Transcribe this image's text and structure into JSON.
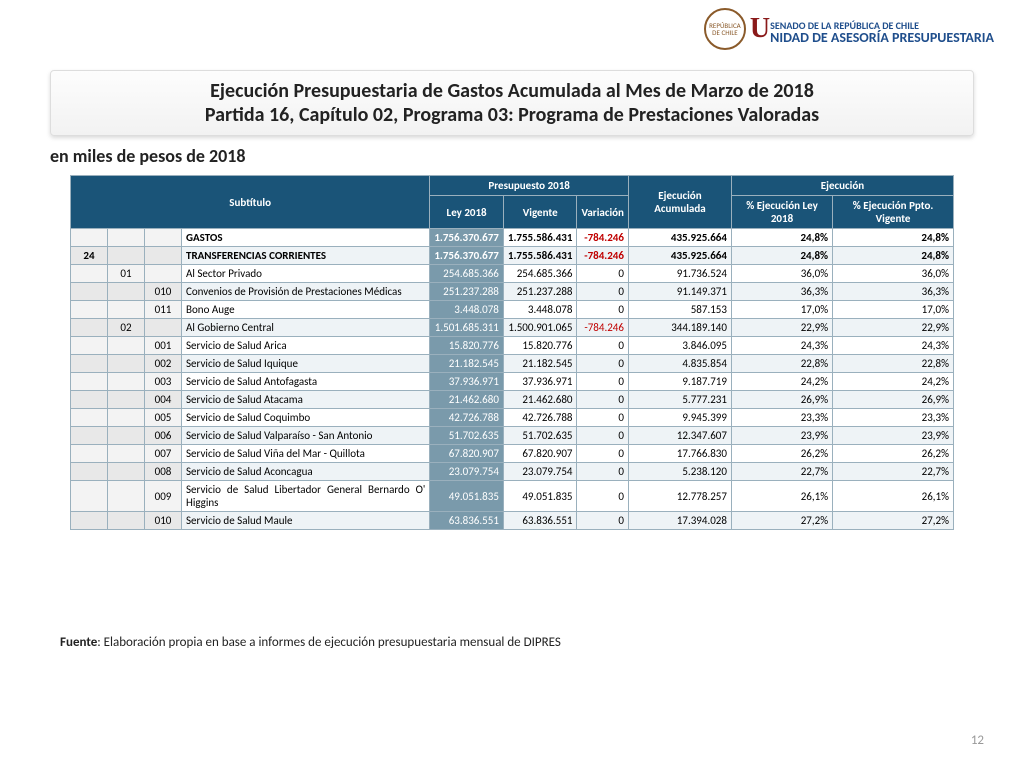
{
  "logo": {
    "senado": "SENADO DE LA REPÚBLICA DE CHILE",
    "unidad": "NIDAD DE ASESORÍA PRESUPUESTARIA",
    "u": "U",
    "seal": "REPÚBLICA DE CHILE"
  },
  "title": {
    "line1": "Ejecución Presupuestaria de Gastos Acumulada al Mes de Marzo de 2018",
    "line2": "Partida 16, Capítulo 02, Programa 03: Programa de Prestaciones Valoradas"
  },
  "subtitle": "en miles de pesos de 2018",
  "headers": {
    "subtitulo": "Subtítulo",
    "presupuesto": "Presupuesto 2018",
    "ejecucion_grp": "Ejecución",
    "ley": "Ley 2018",
    "vigente": "Vigente",
    "variacion": "Variación",
    "ejec_acum": "Ejecución Acumulada",
    "pct_ley": "% Ejecución Ley 2018",
    "pct_vig": "% Ejecución Ppto. Vigente"
  },
  "rows": [
    {
      "c1": "",
      "c2": "",
      "c3": "",
      "desc": "GASTOS",
      "ley": "1.756.370.677",
      "vig": "1.755.586.431",
      "var": "-784.246",
      "neg": true,
      "acum": "435.925.664",
      "pley": "24,8%",
      "pvig": "24,8%",
      "bold": true
    },
    {
      "c1": "24",
      "c2": "",
      "c3": "",
      "desc": "TRANSFERENCIAS CORRIENTES",
      "ley": "1.756.370.677",
      "vig": "1.755.586.431",
      "var": "-784.246",
      "neg": true,
      "acum": "435.925.664",
      "pley": "24,8%",
      "pvig": "24,8%",
      "bold": true
    },
    {
      "c1": "",
      "c2": "01",
      "c3": "",
      "desc": "Al Sector Privado",
      "ley": "254.685.366",
      "vig": "254.685.366",
      "var": "0",
      "acum": "91.736.524",
      "pley": "36,0%",
      "pvig": "36,0%"
    },
    {
      "c1": "",
      "c2": "",
      "c3": "010",
      "desc": "Convenios de Provisión de Prestaciones Médicas",
      "ley": "251.237.288",
      "vig": "251.237.288",
      "var": "0",
      "acum": "91.149.371",
      "pley": "36,3%",
      "pvig": "36,3%"
    },
    {
      "c1": "",
      "c2": "",
      "c3": "011",
      "desc": "Bono Auge",
      "ley": "3.448.078",
      "vig": "3.448.078",
      "var": "0",
      "acum": "587.153",
      "pley": "17,0%",
      "pvig": "17,0%"
    },
    {
      "c1": "",
      "c2": "02",
      "c3": "",
      "desc": "Al Gobierno Central",
      "ley": "1.501.685.311",
      "vig": "1.500.901.065",
      "var": "-784.246",
      "neg": true,
      "acum": "344.189.140",
      "pley": "22,9%",
      "pvig": "22,9%"
    },
    {
      "c1": "",
      "c2": "",
      "c3": "001",
      "desc": "Servicio de Salud Arica",
      "ley": "15.820.776",
      "vig": "15.820.776",
      "var": "0",
      "acum": "3.846.095",
      "pley": "24,3%",
      "pvig": "24,3%"
    },
    {
      "c1": "",
      "c2": "",
      "c3": "002",
      "desc": "Servicio de Salud Iquique",
      "ley": "21.182.545",
      "vig": "21.182.545",
      "var": "0",
      "acum": "4.835.854",
      "pley": "22,8%",
      "pvig": "22,8%"
    },
    {
      "c1": "",
      "c2": "",
      "c3": "003",
      "desc": "Servicio de Salud Antofagasta",
      "ley": "37.936.971",
      "vig": "37.936.971",
      "var": "0",
      "acum": "9.187.719",
      "pley": "24,2%",
      "pvig": "24,2%"
    },
    {
      "c1": "",
      "c2": "",
      "c3": "004",
      "desc": "Servicio de Salud Atacama",
      "ley": "21.462.680",
      "vig": "21.462.680",
      "var": "0",
      "acum": "5.777.231",
      "pley": "26,9%",
      "pvig": "26,9%"
    },
    {
      "c1": "",
      "c2": "",
      "c3": "005",
      "desc": "Servicio de Salud Coquimbo",
      "ley": "42.726.788",
      "vig": "42.726.788",
      "var": "0",
      "acum": "9.945.399",
      "pley": "23,3%",
      "pvig": "23,3%"
    },
    {
      "c1": "",
      "c2": "",
      "c3": "006",
      "desc": "Servicio de Salud Valparaíso - San Antonio",
      "ley": "51.702.635",
      "vig": "51.702.635",
      "var": "0",
      "acum": "12.347.607",
      "pley": "23,9%",
      "pvig": "23,9%"
    },
    {
      "c1": "",
      "c2": "",
      "c3": "007",
      "desc": "Servicio de Salud Viña del Mar - Quillota",
      "ley": "67.820.907",
      "vig": "67.820.907",
      "var": "0",
      "acum": "17.766.830",
      "pley": "26,2%",
      "pvig": "26,2%"
    },
    {
      "c1": "",
      "c2": "",
      "c3": "008",
      "desc": "Servicio de Salud Aconcagua",
      "ley": "23.079.754",
      "vig": "23.079.754",
      "var": "0",
      "acum": "5.238.120",
      "pley": "22,7%",
      "pvig": "22,7%"
    },
    {
      "c1": "",
      "c2": "",
      "c3": "009",
      "desc": "Servicio de Salud Libertador General Bernardo O' Higgins",
      "ley": "49.051.835",
      "vig": "49.051.835",
      "var": "0",
      "acum": "12.778.257",
      "pley": "26,1%",
      "pvig": "26,1%"
    },
    {
      "c1": "",
      "c2": "",
      "c3": "010",
      "desc": "Servicio de Salud Maule",
      "ley": "63.836.551",
      "vig": "63.836.551",
      "var": "0",
      "acum": "17.394.028",
      "pley": "27,2%",
      "pvig": "27,2%"
    }
  ],
  "fuente_label": "Fuente",
  "fuente_text": ": Elaboración propia en base  a informes de ejecución presupuestaria mensual de DIPRES",
  "page_number": "12",
  "style": {
    "header_bg": "#1a5478",
    "ley_col_bg": "#7a9aab",
    "alt_row_bg": "#eef3f6",
    "border_color": "#9ab0bd",
    "neg_color": "#c00000"
  }
}
